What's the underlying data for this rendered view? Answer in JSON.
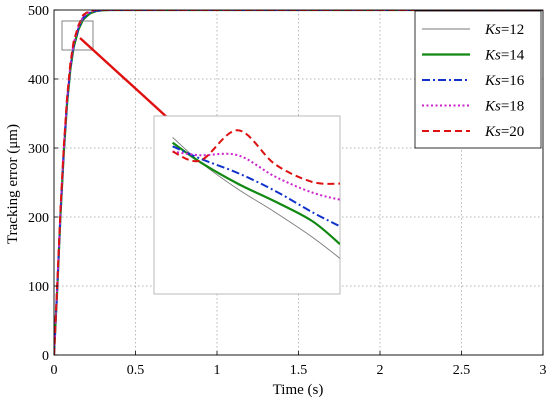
{
  "chart_data": {
    "type": "line",
    "xlabel": "Time (s)",
    "ylabel": "Tracking error (μm)",
    "xlim": [
      0,
      3
    ],
    "ylim": [
      0,
      500
    ],
    "xticks": [
      0,
      0.5,
      1,
      1.5,
      2,
      2.5,
      3
    ],
    "xtick_labels": [
      "0",
      "0.5",
      "1",
      "1.5",
      "2",
      "2.5",
      "3"
    ],
    "yticks": [
      0,
      100,
      200,
      300,
      400,
      500
    ],
    "ytick_labels": [
      "0",
      "100",
      "200",
      "300",
      "400",
      "500"
    ],
    "grid": true,
    "legend_position": "top-right",
    "series": [
      {
        "name": "Ks=12",
        "label_italic": "Ks",
        "label_rest": "=12",
        "color": "#7a7a7a",
        "dash": "solid",
        "width": 0.9,
        "x": [
          0,
          0.02,
          0.04,
          0.06,
          0.08,
          0.1,
          0.12,
          0.15,
          0.18,
          0.22,
          0.26,
          0.3,
          0.35,
          0.4,
          3
        ],
        "y": [
          0,
          95,
          200,
          290,
          360,
          410,
          443,
          470,
          485,
          494,
          498,
          499.5,
          500,
          500,
          500
        ]
      },
      {
        "name": "Ks=14",
        "label_italic": "Ks",
        "label_rest": "=14",
        "color": "#118811",
        "dash": "solid",
        "width": 2.2,
        "x": [
          0,
          0.02,
          0.04,
          0.06,
          0.08,
          0.1,
          0.12,
          0.15,
          0.18,
          0.22,
          0.26,
          0.3,
          0.35,
          0.4,
          3
        ],
        "y": [
          0,
          97,
          203,
          293,
          363,
          413,
          446,
          472,
          487,
          495,
          498.5,
          499.6,
          500,
          500,
          500
        ]
      },
      {
        "name": "Ks=16",
        "label_italic": "Ks",
        "label_rest": "=16",
        "color": "#1133cc",
        "dash": "dashdot",
        "width": 2.0,
        "x": [
          0,
          0.02,
          0.04,
          0.06,
          0.08,
          0.1,
          0.12,
          0.15,
          0.18,
          0.22,
          0.26,
          0.3,
          0.35,
          0.4,
          3
        ],
        "y": [
          0,
          99,
          206,
          296,
          366,
          416,
          448,
          474,
          489,
          496,
          499,
          499.8,
          500,
          500,
          500
        ]
      },
      {
        "name": "Ks=18",
        "label_italic": "Ks",
        "label_rest": "=18",
        "color": "#cc22cc",
        "dash": "dotted",
        "width": 2.0,
        "x": [
          0,
          0.02,
          0.04,
          0.06,
          0.08,
          0.1,
          0.12,
          0.15,
          0.18,
          0.22,
          0.26,
          0.3,
          0.35,
          0.4,
          3
        ],
        "y": [
          0,
          101,
          209,
          299,
          369,
          419,
          451,
          476,
          491,
          497.5,
          499.5,
          500,
          500,
          500,
          500
        ]
      },
      {
        "name": "Ks=20",
        "label_italic": "Ks",
        "label_rest": "=20",
        "color": "#dd1111",
        "dash": "dashed",
        "width": 2.0,
        "x": [
          0,
          0.02,
          0.04,
          0.06,
          0.08,
          0.1,
          0.12,
          0.15,
          0.18,
          0.22,
          0.26,
          0.3,
          0.35,
          0.4,
          3
        ],
        "y": [
          0,
          103,
          212,
          302,
          372,
          422,
          454,
          478,
          493,
          499,
          500.4,
          500.2,
          500,
          500,
          500
        ]
      }
    ],
    "inset": {
      "zoom_window_x": [
        0.05,
        0.24
      ],
      "zoom_window_y": [
        465,
        510
      ],
      "series_curves": [
        {
          "series": "Ks=12",
          "x": [
            0.1,
            0.25,
            0.45,
            0.65,
            0.85,
            1.0
          ],
          "y": [
            0.38,
            0.24,
            0.09,
            -0.04,
            -0.18,
            -0.3
          ]
        },
        {
          "series": "Ks=14",
          "x": [
            0.1,
            0.25,
            0.45,
            0.65,
            0.85,
            1.0
          ],
          "y": [
            0.35,
            0.24,
            0.12,
            0.02,
            -0.09,
            -0.22
          ]
        },
        {
          "series": "Ks=16",
          "x": [
            0.1,
            0.25,
            0.45,
            0.65,
            0.85,
            1.0
          ],
          "y": [
            0.33,
            0.26,
            0.18,
            0.08,
            -0.04,
            -0.12
          ]
        },
        {
          "series": "Ks=18",
          "x": [
            0.1,
            0.25,
            0.45,
            0.65,
            0.85,
            1.0
          ],
          "y": [
            0.3,
            0.28,
            0.28,
            0.16,
            0.07,
            0.03
          ]
        },
        {
          "series": "Ks=20",
          "x": [
            0.1,
            0.25,
            0.45,
            0.65,
            0.85,
            1.0
          ],
          "y": [
            0.3,
            0.25,
            0.42,
            0.23,
            0.13,
            0.12
          ]
        }
      ]
    }
  }
}
